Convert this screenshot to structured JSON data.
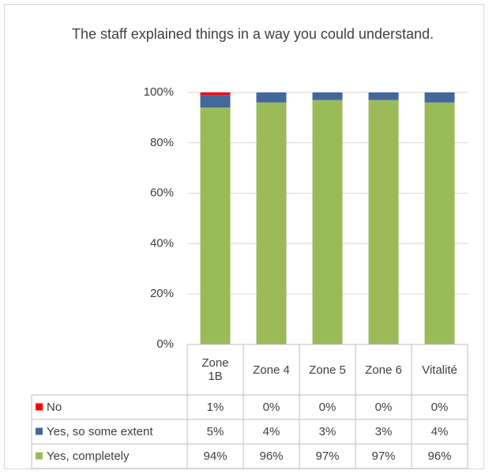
{
  "chart_data": {
    "type": "stacked_bar",
    "title": "The staff explained things in a way you could understand.",
    "categories": [
      "Zone 1B",
      "Zone 4",
      "Zone 5",
      "Zone 6",
      "Vitalité"
    ],
    "series": [
      {
        "name": "Yes, completely",
        "color": "#9bbb59",
        "values": [
          94,
          96,
          97,
          97,
          96
        ],
        "value_labels": [
          "94%",
          "96%",
          "97%",
          "97%",
          "96%"
        ]
      },
      {
        "name": "Yes, so some extent",
        "color": "#44679b",
        "values": [
          5,
          4,
          3,
          3,
          4
        ],
        "value_labels": [
          "5%",
          "4%",
          "3%",
          "3%",
          "4%"
        ]
      },
      {
        "name": "No",
        "color": "#ff0000",
        "values": [
          1,
          0,
          0,
          0,
          0
        ],
        "value_labels": [
          "1%",
          "0%",
          "0%",
          "0%",
          "0%"
        ]
      }
    ],
    "ylim": [
      0,
      100
    ],
    "yticks": [
      {
        "value": 0,
        "label": "0%"
      },
      {
        "value": 20,
        "label": "20%"
      },
      {
        "value": 40,
        "label": "40%"
      },
      {
        "value": 60,
        "label": "60%"
      },
      {
        "value": 80,
        "label": "80%"
      },
      {
        "value": 100,
        "label": "100%"
      }
    ],
    "grid": true
  }
}
